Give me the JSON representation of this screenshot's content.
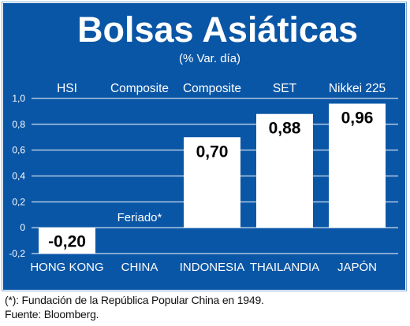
{
  "colors": {
    "panel": "#0a56a6",
    "bar": "#ffffff",
    "grid": "#ffffff",
    "text": "#ffffff",
    "value_text": "#000000",
    "frame": "#7fa6d4"
  },
  "chart_data": {
    "type": "bar",
    "title": "Bolsas Asiáticas",
    "subtitle": "(% Var. día)",
    "categories": [
      "HONG KONG",
      "CHINA",
      "INDONESIA",
      "THAILANDIA",
      "JAPÓN"
    ],
    "index_names": [
      "HSI",
      "Composite",
      "Composite",
      "SET",
      "Nikkei 225"
    ],
    "values": [
      -0.2,
      null,
      0.7,
      0.88,
      0.96
    ],
    "value_labels": [
      "-0,20",
      "",
      "0,70",
      "0,88",
      "0,96"
    ],
    "notes": [
      "",
      "Feriado*",
      "",
      "",
      ""
    ],
    "ylim": [
      -0.2,
      1.0
    ],
    "yticks": [
      -0.2,
      0,
      0.2,
      0.4,
      0.6,
      0.8,
      1.0
    ],
    "ytick_labels": [
      "-0,2",
      "0",
      "0,2",
      "0,4",
      "0,6",
      "0,8",
      "1,0"
    ],
    "grid": true
  },
  "footnotes": {
    "note": "(*): Fundación de la República Popular China en 1949.",
    "source": "Fuente: Bloomberg."
  }
}
